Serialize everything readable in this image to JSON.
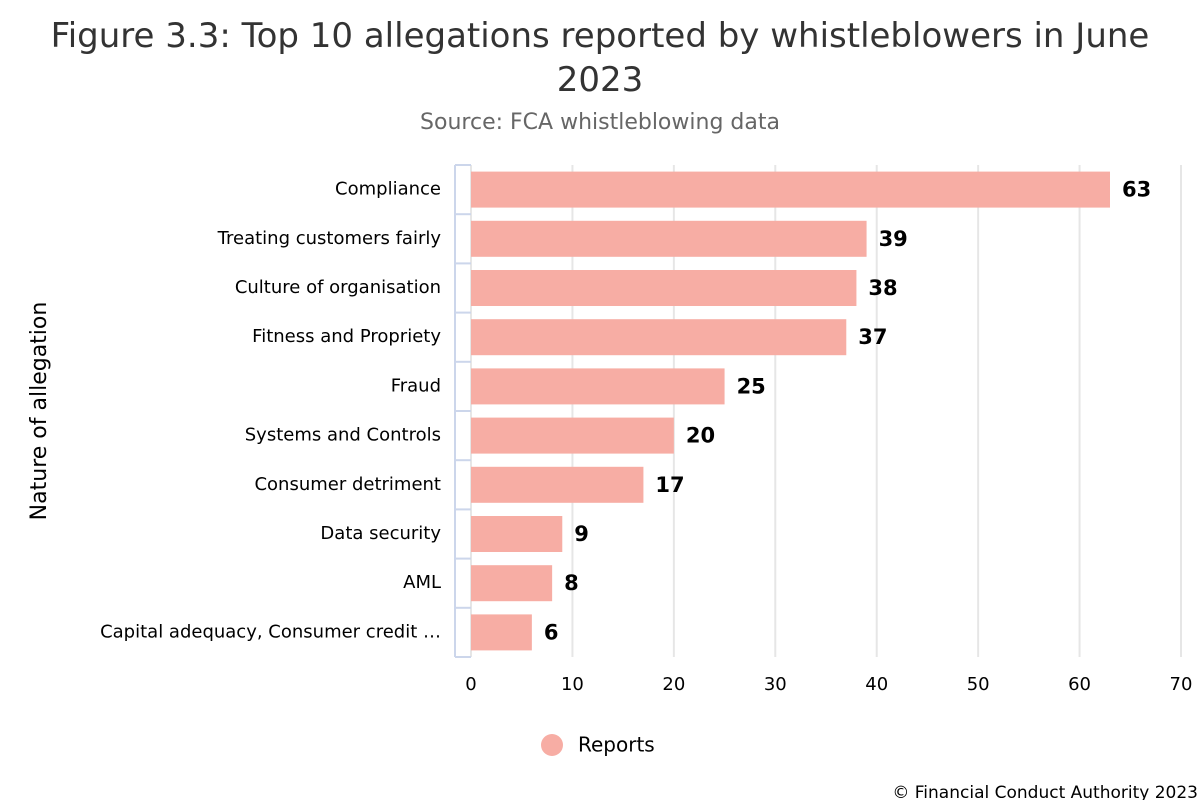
{
  "chart_data": {
    "type": "bar",
    "orientation": "horizontal",
    "title": "Figure 3.3: Top 10 allegations reported by whistleblowers in June 2023",
    "subtitle": "Source: FCA whistleblowing data",
    "y_axis_label": "Nature of allegation",
    "categories": [
      "Compliance",
      "Treating customers fairly",
      "Culture of organisation",
      "Fitness and Propriety",
      "Fraud",
      "Systems and Controls",
      "Consumer detriment",
      "Data security",
      "AML",
      "Capital adequacy, Consumer credit …"
    ],
    "series": [
      {
        "name": "Reports",
        "color": "#f7ada4",
        "values": [
          63,
          39,
          38,
          37,
          25,
          20,
          17,
          9,
          8,
          6
        ]
      }
    ],
    "xlim": [
      0,
      70
    ],
    "xticks": [
      0,
      10,
      20,
      30,
      40,
      50,
      60,
      70
    ],
    "grid": true,
    "legend": "bottom",
    "credits": "© Financial Conduct Authority 2023"
  }
}
